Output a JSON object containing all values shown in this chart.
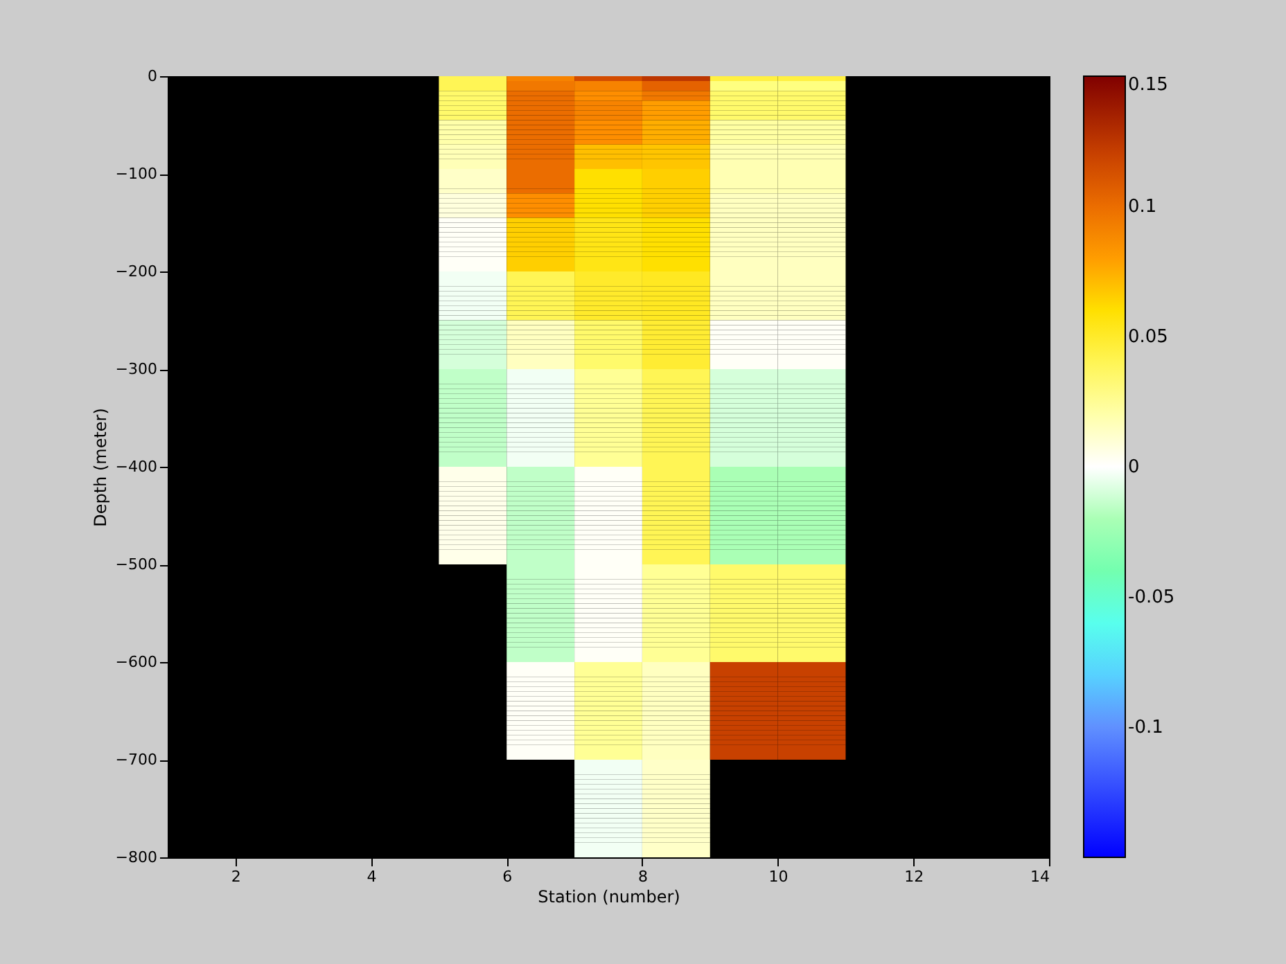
{
  "chart_data": {
    "type": "heatmap",
    "xlabel": "Station (number)",
    "ylabel": "Depth (meter)",
    "cells": [
      [
        null,
        null,
        null,
        null,
        0.04,
        0.09,
        0.115,
        0.125,
        0.045,
        0.045,
        null,
        null,
        null
      ],
      [
        null,
        null,
        null,
        null,
        0.04,
        0.095,
        0.09,
        0.105,
        0.03,
        0.03,
        null,
        null,
        null
      ],
      [
        null,
        null,
        null,
        null,
        0.04,
        0.095,
        0.09,
        0.105,
        0.03,
        0.03,
        null,
        null,
        null
      ],
      [
        null,
        null,
        null,
        null,
        0.035,
        0.1,
        0.085,
        0.095,
        0.035,
        0.035,
        null,
        null,
        null
      ],
      [
        null,
        null,
        null,
        null,
        0.035,
        0.1,
        0.085,
        0.095,
        0.035,
        0.035,
        null,
        null,
        null
      ],
      [
        null,
        null,
        null,
        null,
        0.035,
        0.1,
        0.09,
        0.08,
        0.035,
        0.035,
        null,
        null,
        null
      ],
      [
        null,
        null,
        null,
        null,
        0.035,
        0.1,
        0.09,
        0.08,
        0.035,
        0.035,
        null,
        null,
        null
      ],
      [
        null,
        null,
        null,
        null,
        0.035,
        0.1,
        0.09,
        0.08,
        0.035,
        0.035,
        null,
        null,
        null
      ],
      [
        null,
        null,
        null,
        null,
        0.035,
        0.1,
        0.09,
        0.08,
        0.035,
        0.035,
        null,
        null,
        null
      ],
      [
        null,
        null,
        null,
        null,
        0.02,
        0.1,
        0.085,
        0.075,
        0.022,
        0.022,
        null,
        null,
        null
      ],
      [
        null,
        null,
        null,
        null,
        0.02,
        0.1,
        0.085,
        0.075,
        0.022,
        0.022,
        null,
        null,
        null
      ],
      [
        null,
        null,
        null,
        null,
        0.02,
        0.1,
        0.085,
        0.075,
        0.022,
        0.022,
        null,
        null,
        null
      ],
      [
        null,
        null,
        null,
        null,
        0.02,
        0.1,
        0.085,
        0.075,
        0.022,
        0.022,
        null,
        null,
        null
      ],
      [
        null,
        null,
        null,
        null,
        0.02,
        0.1,
        0.085,
        0.075,
        0.022,
        0.022,
        null,
        null,
        null
      ],
      [
        null,
        null,
        null,
        null,
        0.017,
        0.1,
        0.07,
        0.068,
        0.018,
        0.018,
        null,
        null,
        null
      ],
      [
        null,
        null,
        null,
        null,
        0.017,
        0.1,
        0.07,
        0.068,
        0.018,
        0.018,
        null,
        null,
        null
      ],
      [
        null,
        null,
        null,
        null,
        0.017,
        0.1,
        0.07,
        0.068,
        0.018,
        0.018,
        null,
        null,
        null
      ],
      [
        null,
        null,
        null,
        null,
        0.017,
        0.1,
        0.07,
        0.068,
        0.018,
        0.018,
        null,
        null,
        null
      ],
      [
        null,
        null,
        null,
        null,
        0.017,
        0.1,
        0.07,
        0.068,
        0.018,
        0.018,
        null,
        null,
        null
      ],
      [
        null,
        null,
        null,
        null,
        0.013,
        0.1,
        0.06,
        0.065,
        0.018,
        0.018,
        null,
        null,
        null
      ],
      [
        null,
        null,
        null,
        null,
        0.013,
        0.1,
        0.06,
        0.065,
        0.018,
        0.018,
        null,
        null,
        null
      ],
      [
        null,
        null,
        null,
        null,
        0.013,
        0.1,
        0.06,
        0.065,
        0.018,
        0.018,
        null,
        null,
        null
      ],
      [
        null,
        null,
        null,
        null,
        0.013,
        0.1,
        0.06,
        0.065,
        0.018,
        0.018,
        null,
        null,
        null
      ],
      [
        null,
        null,
        null,
        null,
        0.013,
        0.1,
        0.06,
        0.065,
        0.018,
        0.018,
        null,
        null,
        null
      ],
      [
        null,
        null,
        null,
        null,
        0.008,
        0.085,
        0.06,
        0.065,
        0.015,
        0.015,
        null,
        null,
        null
      ],
      [
        null,
        null,
        null,
        null,
        0.008,
        0.085,
        0.06,
        0.065,
        0.015,
        0.015,
        null,
        null,
        null
      ],
      [
        null,
        null,
        null,
        null,
        0.008,
        0.085,
        0.06,
        0.065,
        0.015,
        0.015,
        null,
        null,
        null
      ],
      [
        null,
        null,
        null,
        null,
        0.008,
        0.085,
        0.06,
        0.065,
        0.015,
        0.015,
        null,
        null,
        null
      ],
      [
        null,
        null,
        null,
        null,
        0.008,
        0.085,
        0.06,
        0.065,
        0.015,
        0.015,
        null,
        null,
        null
      ],
      [
        null,
        null,
        null,
        null,
        0.002,
        0.065,
        0.055,
        0.06,
        0.015,
        0.015,
        null,
        null,
        null
      ],
      [
        null,
        null,
        null,
        null,
        0.002,
        0.065,
        0.055,
        0.06,
        0.015,
        0.015,
        null,
        null,
        null
      ],
      [
        null,
        null,
        null,
        null,
        0.002,
        0.065,
        0.055,
        0.06,
        0.015,
        0.015,
        null,
        null,
        null
      ],
      [
        null,
        null,
        null,
        null,
        0.002,
        0.065,
        0.055,
        0.06,
        0.015,
        0.015,
        null,
        null,
        null
      ],
      [
        null,
        null,
        null,
        null,
        0.002,
        0.065,
        0.055,
        0.06,
        0.015,
        0.015,
        null,
        null,
        null
      ],
      [
        null,
        null,
        null,
        null,
        0.002,
        0.065,
        0.055,
        0.06,
        0.015,
        0.015,
        null,
        null,
        null
      ],
      [
        null,
        null,
        null,
        null,
        0.002,
        0.065,
        0.055,
        0.06,
        0.015,
        0.015,
        null,
        null,
        null
      ],
      [
        null,
        null,
        null,
        null,
        0.002,
        0.065,
        0.055,
        0.06,
        0.015,
        0.015,
        null,
        null,
        null
      ],
      [
        null,
        null,
        null,
        null,
        0.002,
        0.065,
        0.055,
        0.06,
        0.015,
        0.015,
        null,
        null,
        null
      ],
      [
        null,
        null,
        null,
        null,
        0.002,
        0.065,
        0.055,
        0.06,
        0.015,
        0.015,
        null,
        null,
        null
      ],
      [
        null,
        null,
        null,
        null,
        0.002,
        0.065,
        0.055,
        0.06,
        0.015,
        0.015,
        null,
        null,
        null
      ],
      [
        null,
        null,
        null,
        null,
        -0.003,
        0.04,
        0.05,
        0.052,
        0.015,
        0.015,
        null,
        null,
        null
      ],
      [
        null,
        null,
        null,
        null,
        -0.003,
        0.04,
        0.05,
        0.052,
        0.015,
        0.015,
        null,
        null,
        null
      ],
      [
        null,
        null,
        null,
        null,
        -0.003,
        0.04,
        0.05,
        0.052,
        0.015,
        0.015,
        null,
        null,
        null
      ],
      [
        null,
        null,
        null,
        null,
        -0.003,
        0.04,
        0.05,
        0.052,
        0.015,
        0.015,
        null,
        null,
        null
      ],
      [
        null,
        null,
        null,
        null,
        -0.003,
        0.04,
        0.05,
        0.052,
        0.015,
        0.015,
        null,
        null,
        null
      ],
      [
        null,
        null,
        null,
        null,
        -0.003,
        0.04,
        0.05,
        0.052,
        0.015,
        0.015,
        null,
        null,
        null
      ],
      [
        null,
        null,
        null,
        null,
        -0.003,
        0.04,
        0.05,
        0.052,
        0.015,
        0.015,
        null,
        null,
        null
      ],
      [
        null,
        null,
        null,
        null,
        -0.003,
        0.04,
        0.05,
        0.052,
        0.015,
        0.015,
        null,
        null,
        null
      ],
      [
        null,
        null,
        null,
        null,
        -0.003,
        0.04,
        0.05,
        0.052,
        0.015,
        0.015,
        null,
        null,
        null
      ],
      [
        null,
        null,
        null,
        null,
        -0.003,
        0.04,
        0.05,
        0.052,
        0.015,
        0.015,
        null,
        null,
        null
      ],
      [
        null,
        null,
        null,
        null,
        -0.01,
        0.015,
        0.035,
        0.048,
        0.002,
        0.002,
        null,
        null,
        null
      ],
      [
        null,
        null,
        null,
        null,
        -0.01,
        0.015,
        0.035,
        0.048,
        0.002,
        0.002,
        null,
        null,
        null
      ],
      [
        null,
        null,
        null,
        null,
        -0.01,
        0.015,
        0.035,
        0.048,
        0.002,
        0.002,
        null,
        null,
        null
      ],
      [
        null,
        null,
        null,
        null,
        -0.01,
        0.015,
        0.035,
        0.048,
        0.002,
        0.002,
        null,
        null,
        null
      ],
      [
        null,
        null,
        null,
        null,
        -0.01,
        0.015,
        0.035,
        0.048,
        0.002,
        0.002,
        null,
        null,
        null
      ],
      [
        null,
        null,
        null,
        null,
        -0.01,
        0.015,
        0.035,
        0.048,
        0.002,
        0.002,
        null,
        null,
        null
      ],
      [
        null,
        null,
        null,
        null,
        -0.01,
        0.015,
        0.035,
        0.048,
        0.002,
        0.002,
        null,
        null,
        null
      ],
      [
        null,
        null,
        null,
        null,
        -0.01,
        0.015,
        0.035,
        0.048,
        0.002,
        0.002,
        null,
        null,
        null
      ],
      [
        null,
        null,
        null,
        null,
        -0.01,
        0.015,
        0.035,
        0.048,
        0.002,
        0.002,
        null,
        null,
        null
      ],
      [
        null,
        null,
        null,
        null,
        -0.01,
        0.015,
        0.035,
        0.048,
        0.002,
        0.002,
        null,
        null,
        null
      ],
      [
        null,
        null,
        null,
        null,
        -0.015,
        -0.003,
        0.025,
        0.04,
        -0.01,
        -0.01,
        null,
        null,
        null
      ],
      [
        null,
        null,
        null,
        null,
        -0.015,
        -0.003,
        0.025,
        0.04,
        -0.01,
        -0.01,
        null,
        null,
        null
      ],
      [
        null,
        null,
        null,
        null,
        -0.015,
        -0.003,
        0.025,
        0.04,
        -0.01,
        -0.01,
        null,
        null,
        null
      ],
      [
        null,
        null,
        null,
        null,
        -0.015,
        -0.003,
        0.025,
        0.04,
        -0.01,
        -0.01,
        null,
        null,
        null
      ],
      [
        null,
        null,
        null,
        null,
        -0.015,
        -0.003,
        0.025,
        0.04,
        -0.01,
        -0.01,
        null,
        null,
        null
      ],
      [
        null,
        null,
        null,
        null,
        -0.015,
        -0.003,
        0.025,
        0.04,
        -0.01,
        -0.01,
        null,
        null,
        null
      ],
      [
        null,
        null,
        null,
        null,
        -0.015,
        -0.003,
        0.025,
        0.04,
        -0.01,
        -0.01,
        null,
        null,
        null
      ],
      [
        null,
        null,
        null,
        null,
        -0.015,
        -0.003,
        0.025,
        0.04,
        -0.01,
        -0.01,
        null,
        null,
        null
      ],
      [
        null,
        null,
        null,
        null,
        -0.015,
        -0.003,
        0.025,
        0.04,
        -0.01,
        -0.01,
        null,
        null,
        null
      ],
      [
        null,
        null,
        null,
        null,
        -0.015,
        -0.003,
        0.025,
        0.04,
        -0.01,
        -0.01,
        null,
        null,
        null
      ],
      [
        null,
        null,
        null,
        null,
        -0.015,
        -0.003,
        0.025,
        0.04,
        -0.01,
        -0.01,
        null,
        null,
        null
      ],
      [
        null,
        null,
        null,
        null,
        -0.015,
        -0.003,
        0.025,
        0.04,
        -0.01,
        -0.01,
        null,
        null,
        null
      ],
      [
        null,
        null,
        null,
        null,
        -0.015,
        -0.003,
        0.025,
        0.04,
        -0.01,
        -0.01,
        null,
        null,
        null
      ],
      [
        null,
        null,
        null,
        null,
        -0.015,
        -0.003,
        0.025,
        0.04,
        -0.01,
        -0.01,
        null,
        null,
        null
      ],
      [
        null,
        null,
        null,
        null,
        -0.015,
        -0.003,
        0.025,
        0.04,
        -0.01,
        -0.01,
        null,
        null,
        null
      ],
      [
        null,
        null,
        null,
        null,
        -0.015,
        -0.003,
        0.025,
        0.04,
        -0.01,
        -0.01,
        null,
        null,
        null
      ],
      [
        null,
        null,
        null,
        null,
        -0.015,
        -0.003,
        0.025,
        0.04,
        -0.01,
        -0.01,
        null,
        null,
        null
      ],
      [
        null,
        null,
        null,
        null,
        -0.015,
        -0.003,
        0.025,
        0.04,
        -0.01,
        -0.01,
        null,
        null,
        null
      ],
      [
        null,
        null,
        null,
        null,
        -0.015,
        -0.003,
        0.025,
        0.04,
        -0.01,
        -0.01,
        null,
        null,
        null
      ],
      [
        null,
        null,
        null,
        null,
        -0.015,
        -0.003,
        0.025,
        0.04,
        -0.01,
        -0.01,
        null,
        null,
        null
      ],
      [
        null,
        null,
        null,
        null,
        0.005,
        -0.015,
        0.002,
        0.04,
        -0.02,
        -0.02,
        null,
        null,
        null
      ],
      [
        null,
        null,
        null,
        null,
        0.005,
        -0.015,
        0.002,
        0.04,
        -0.02,
        -0.02,
        null,
        null,
        null
      ],
      [
        null,
        null,
        null,
        null,
        0.005,
        -0.015,
        0.002,
        0.04,
        -0.02,
        -0.02,
        null,
        null,
        null
      ],
      [
        null,
        null,
        null,
        null,
        0.005,
        -0.015,
        0.002,
        0.04,
        -0.02,
        -0.02,
        null,
        null,
        null
      ],
      [
        null,
        null,
        null,
        null,
        0.005,
        -0.015,
        0.002,
        0.04,
        -0.02,
        -0.02,
        null,
        null,
        null
      ],
      [
        null,
        null,
        null,
        null,
        0.005,
        -0.015,
        0.002,
        0.04,
        -0.02,
        -0.02,
        null,
        null,
        null
      ],
      [
        null,
        null,
        null,
        null,
        0.005,
        -0.015,
        0.002,
        0.04,
        -0.02,
        -0.02,
        null,
        null,
        null
      ],
      [
        null,
        null,
        null,
        null,
        0.005,
        -0.015,
        0.002,
        0.04,
        -0.02,
        -0.02,
        null,
        null,
        null
      ],
      [
        null,
        null,
        null,
        null,
        0.005,
        -0.015,
        0.002,
        0.04,
        -0.02,
        -0.02,
        null,
        null,
        null
      ],
      [
        null,
        null,
        null,
        null,
        0.005,
        -0.015,
        0.002,
        0.04,
        -0.02,
        -0.02,
        null,
        null,
        null
      ],
      [
        null,
        null,
        null,
        null,
        0.005,
        -0.015,
        0.002,
        0.04,
        -0.02,
        -0.02,
        null,
        null,
        null
      ],
      [
        null,
        null,
        null,
        null,
        0.005,
        -0.015,
        0.002,
        0.04,
        -0.02,
        -0.02,
        null,
        null,
        null
      ],
      [
        null,
        null,
        null,
        null,
        0.005,
        -0.015,
        0.002,
        0.04,
        -0.02,
        -0.02,
        null,
        null,
        null
      ],
      [
        null,
        null,
        null,
        null,
        0.005,
        -0.015,
        0.002,
        0.04,
        -0.02,
        -0.02,
        null,
        null,
        null
      ],
      [
        null,
        null,
        null,
        null,
        0.005,
        -0.015,
        0.002,
        0.04,
        -0.02,
        -0.02,
        null,
        null,
        null
      ],
      [
        null,
        null,
        null,
        null,
        0.005,
        -0.015,
        0.002,
        0.04,
        -0.02,
        -0.02,
        null,
        null,
        null
      ],
      [
        null,
        null,
        null,
        null,
        0.005,
        -0.015,
        0.002,
        0.04,
        -0.02,
        -0.02,
        null,
        null,
        null
      ],
      [
        null,
        null,
        null,
        null,
        0.005,
        -0.015,
        0.002,
        0.04,
        -0.02,
        -0.02,
        null,
        null,
        null
      ],
      [
        null,
        null,
        null,
        null,
        0.005,
        -0.015,
        0.002,
        0.04,
        -0.02,
        -0.02,
        null,
        null,
        null
      ],
      [
        null,
        null,
        null,
        null,
        0.005,
        -0.015,
        0.002,
        0.04,
        -0.02,
        -0.02,
        null,
        null,
        null
      ],
      [
        null,
        null,
        null,
        null,
        null,
        -0.015,
        0.002,
        0.025,
        0.035,
        0.035,
        null,
        null,
        null
      ],
      [
        null,
        null,
        null,
        null,
        null,
        -0.015,
        0.002,
        0.025,
        0.035,
        0.035,
        null,
        null,
        null
      ],
      [
        null,
        null,
        null,
        null,
        null,
        -0.015,
        0.002,
        0.025,
        0.035,
        0.035,
        null,
        null,
        null
      ],
      [
        null,
        null,
        null,
        null,
        null,
        -0.015,
        0.002,
        0.025,
        0.035,
        0.035,
        null,
        null,
        null
      ],
      [
        null,
        null,
        null,
        null,
        null,
        -0.015,
        0.002,
        0.025,
        0.035,
        0.035,
        null,
        null,
        null
      ],
      [
        null,
        null,
        null,
        null,
        null,
        -0.015,
        0.002,
        0.025,
        0.035,
        0.035,
        null,
        null,
        null
      ],
      [
        null,
        null,
        null,
        null,
        null,
        -0.015,
        0.002,
        0.025,
        0.035,
        0.035,
        null,
        null,
        null
      ],
      [
        null,
        null,
        null,
        null,
        null,
        -0.015,
        0.002,
        0.025,
        0.035,
        0.035,
        null,
        null,
        null
      ],
      [
        null,
        null,
        null,
        null,
        null,
        -0.015,
        0.002,
        0.025,
        0.035,
        0.035,
        null,
        null,
        null
      ],
      [
        null,
        null,
        null,
        null,
        null,
        -0.015,
        0.002,
        0.025,
        0.035,
        0.035,
        null,
        null,
        null
      ],
      [
        null,
        null,
        null,
        null,
        null,
        -0.015,
        0.002,
        0.025,
        0.035,
        0.035,
        null,
        null,
        null
      ],
      [
        null,
        null,
        null,
        null,
        null,
        -0.015,
        0.002,
        0.025,
        0.035,
        0.035,
        null,
        null,
        null
      ],
      [
        null,
        null,
        null,
        null,
        null,
        -0.015,
        0.002,
        0.025,
        0.035,
        0.035,
        null,
        null,
        null
      ],
      [
        null,
        null,
        null,
        null,
        null,
        -0.015,
        0.002,
        0.025,
        0.035,
        0.035,
        null,
        null,
        null
      ],
      [
        null,
        null,
        null,
        null,
        null,
        -0.015,
        0.002,
        0.025,
        0.035,
        0.035,
        null,
        null,
        null
      ],
      [
        null,
        null,
        null,
        null,
        null,
        -0.015,
        0.002,
        0.025,
        0.035,
        0.035,
        null,
        null,
        null
      ],
      [
        null,
        null,
        null,
        null,
        null,
        -0.015,
        0.002,
        0.025,
        0.035,
        0.035,
        null,
        null,
        null
      ],
      [
        null,
        null,
        null,
        null,
        null,
        -0.015,
        0.002,
        0.025,
        0.035,
        0.035,
        null,
        null,
        null
      ],
      [
        null,
        null,
        null,
        null,
        null,
        -0.015,
        0.002,
        0.025,
        0.035,
        0.035,
        null,
        null,
        null
      ],
      [
        null,
        null,
        null,
        null,
        null,
        -0.015,
        0.002,
        0.025,
        0.035,
        0.035,
        null,
        null,
        null
      ],
      [
        null,
        null,
        null,
        null,
        null,
        0.002,
        0.025,
        0.015,
        0.12,
        0.12,
        null,
        null,
        null
      ],
      [
        null,
        null,
        null,
        null,
        null,
        0.002,
        0.025,
        0.015,
        0.12,
        0.12,
        null,
        null,
        null
      ],
      [
        null,
        null,
        null,
        null,
        null,
        0.002,
        0.025,
        0.015,
        0.12,
        0.12,
        null,
        null,
        null
      ],
      [
        null,
        null,
        null,
        null,
        null,
        0.002,
        0.025,
        0.015,
        0.12,
        0.12,
        null,
        null,
        null
      ],
      [
        null,
        null,
        null,
        null,
        null,
        0.002,
        0.025,
        0.015,
        0.12,
        0.12,
        null,
        null,
        null
      ],
      [
        null,
        null,
        null,
        null,
        null,
        0.002,
        0.025,
        0.015,
        0.12,
        0.12,
        null,
        null,
        null
      ],
      [
        null,
        null,
        null,
        null,
        null,
        0.002,
        0.025,
        0.015,
        0.12,
        0.12,
        null,
        null,
        null
      ],
      [
        null,
        null,
        null,
        null,
        null,
        0.002,
        0.025,
        0.015,
        0.12,
        0.12,
        null,
        null,
        null
      ],
      [
        null,
        null,
        null,
        null,
        null,
        0.002,
        0.025,
        0.015,
        0.12,
        0.12,
        null,
        null,
        null
      ],
      [
        null,
        null,
        null,
        null,
        null,
        0.002,
        0.025,
        0.015,
        0.12,
        0.12,
        null,
        null,
        null
      ],
      [
        null,
        null,
        null,
        null,
        null,
        0.002,
        0.025,
        0.015,
        0.12,
        0.12,
        null,
        null,
        null
      ],
      [
        null,
        null,
        null,
        null,
        null,
        0.002,
        0.025,
        0.015,
        0.12,
        0.12,
        null,
        null,
        null
      ],
      [
        null,
        null,
        null,
        null,
        null,
        0.002,
        0.025,
        0.015,
        0.12,
        0.12,
        null,
        null,
        null
      ],
      [
        null,
        null,
        null,
        null,
        null,
        0.002,
        0.025,
        0.015,
        0.12,
        0.12,
        null,
        null,
        null
      ],
      [
        null,
        null,
        null,
        null,
        null,
        0.002,
        0.025,
        0.015,
        0.12,
        0.12,
        null,
        null,
        null
      ],
      [
        null,
        null,
        null,
        null,
        null,
        0.002,
        0.025,
        0.015,
        0.12,
        0.12,
        null,
        null,
        null
      ],
      [
        null,
        null,
        null,
        null,
        null,
        0.002,
        0.025,
        0.015,
        0.12,
        0.12,
        null,
        null,
        null
      ],
      [
        null,
        null,
        null,
        null,
        null,
        0.002,
        0.025,
        0.015,
        0.12,
        0.12,
        null,
        null,
        null
      ],
      [
        null,
        null,
        null,
        null,
        null,
        0.002,
        0.025,
        0.015,
        0.12,
        0.12,
        null,
        null,
        null
      ],
      [
        null,
        null,
        null,
        null,
        null,
        0.002,
        0.025,
        0.015,
        0.12,
        0.12,
        null,
        null,
        null
      ],
      [
        null,
        null,
        null,
        null,
        null,
        null,
        -0.003,
        0.013,
        null,
        null,
        null,
        null,
        null
      ],
      [
        null,
        null,
        null,
        null,
        null,
        null,
        -0.003,
        0.013,
        null,
        null,
        null,
        null,
        null
      ],
      [
        null,
        null,
        null,
        null,
        null,
        null,
        -0.003,
        0.013,
        null,
        null,
        null,
        null,
        null
      ],
      [
        null,
        null,
        null,
        null,
        null,
        null,
        -0.003,
        0.013,
        null,
        null,
        null,
        null,
        null
      ],
      [
        null,
        null,
        null,
        null,
        null,
        null,
        -0.003,
        0.013,
        null,
        null,
        null,
        null,
        null
      ],
      [
        null,
        null,
        null,
        null,
        null,
        null,
        -0.003,
        0.013,
        null,
        null,
        null,
        null,
        null
      ],
      [
        null,
        null,
        null,
        null,
        null,
        null,
        -0.003,
        0.013,
        null,
        null,
        null,
        null,
        null
      ],
      [
        null,
        null,
        null,
        null,
        null,
        null,
        -0.003,
        0.013,
        null,
        null,
        null,
        null,
        null
      ],
      [
        null,
        null,
        null,
        null,
        null,
        null,
        -0.003,
        0.013,
        null,
        null,
        null,
        null,
        null
      ],
      [
        null,
        null,
        null,
        null,
        null,
        null,
        -0.003,
        0.013,
        null,
        null,
        null,
        null,
        null
      ],
      [
        null,
        null,
        null,
        null,
        null,
        null,
        -0.003,
        0.013,
        null,
        null,
        null,
        null,
        null
      ],
      [
        null,
        null,
        null,
        null,
        null,
        null,
        -0.003,
        0.013,
        null,
        null,
        null,
        null,
        null
      ],
      [
        null,
        null,
        null,
        null,
        null,
        null,
        -0.003,
        0.013,
        null,
        null,
        null,
        null,
        null
      ],
      [
        null,
        null,
        null,
        null,
        null,
        null,
        -0.003,
        0.013,
        null,
        null,
        null,
        null,
        null
      ],
      [
        null,
        null,
        null,
        null,
        null,
        null,
        -0.003,
        0.013,
        null,
        null,
        null,
        null,
        null
      ],
      [
        null,
        null,
        null,
        null,
        null,
        null,
        -0.003,
        0.013,
        null,
        null,
        null,
        null,
        null
      ],
      [
        null,
        null,
        null,
        null,
        null,
        null,
        -0.003,
        0.013,
        null,
        null,
        null,
        null,
        null
      ],
      [
        null,
        null,
        null,
        null,
        null,
        null,
        -0.003,
        0.013,
        null,
        null,
        null,
        null,
        null
      ],
      [
        null,
        null,
        null,
        null,
        null,
        null,
        -0.003,
        0.013,
        null,
        null,
        null,
        null,
        null
      ],
      [
        null,
        null,
        null,
        null,
        null,
        null,
        -0.003,
        0.013,
        null,
        null,
        null,
        null,
        null
      ]
    ],
    "xlim": [
      1,
      14
    ],
    "xticks": [
      2,
      4,
      6,
      8,
      10,
      12,
      14
    ],
    "ylim": [
      -800,
      0
    ],
    "yticks": [
      -800,
      -700,
      -600,
      -500,
      -400,
      -300,
      -200,
      -100,
      0
    ],
    "clim": [
      -0.15,
      0.15
    ],
    "cticks": [
      -0.1,
      -0.05,
      0,
      0.05,
      0.1,
      0.15
    ],
    "grid": false
  }
}
